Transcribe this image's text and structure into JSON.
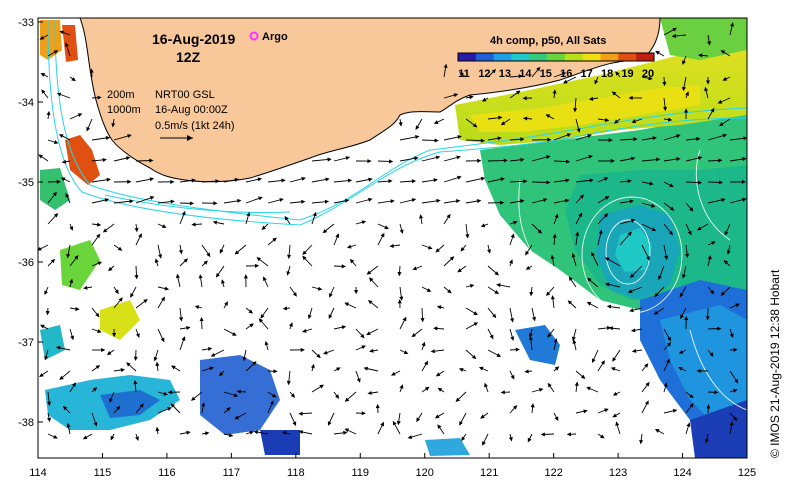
{
  "map": {
    "date": "16-Aug-2019",
    "time": "12Z",
    "legend_argo": "Argo",
    "colorbar_title": "4h comp, p50, All Sats",
    "colorbar_ticks": [
      "11",
      "12",
      "13",
      "14",
      "15",
      "16",
      "17",
      "18",
      "19",
      "20"
    ],
    "depth_contours": [
      "200m",
      "1000m"
    ],
    "product": "NRT00 GSL",
    "product_time": "16-Aug 00:00Z",
    "vector_scale": "0.5m/s (1kt 24h)",
    "credit": "© IMOS 21-Aug-2019 12:38 Hobart",
    "lon_ticks": [
      "114",
      "115",
      "116",
      "117",
      "118",
      "119",
      "120",
      "121",
      "122",
      "123",
      "124",
      "125"
    ],
    "lat_ticks": [
      "-33",
      "-34",
      "-35",
      "-36",
      "-37",
      "-38"
    ],
    "colors": {
      "land": "#f8c79a",
      "coast": "#000000",
      "isobath": "#29d6e8",
      "argo": "#ff33ff"
    },
    "colorbar_colors": [
      "#2a1aa8",
      "#1f5fd8",
      "#1ea0e6",
      "#22c8c8",
      "#36c97a",
      "#6ad53a",
      "#b8e018",
      "#f0e010",
      "#f0a018",
      "#e05010",
      "#c02010"
    ]
  }
}
